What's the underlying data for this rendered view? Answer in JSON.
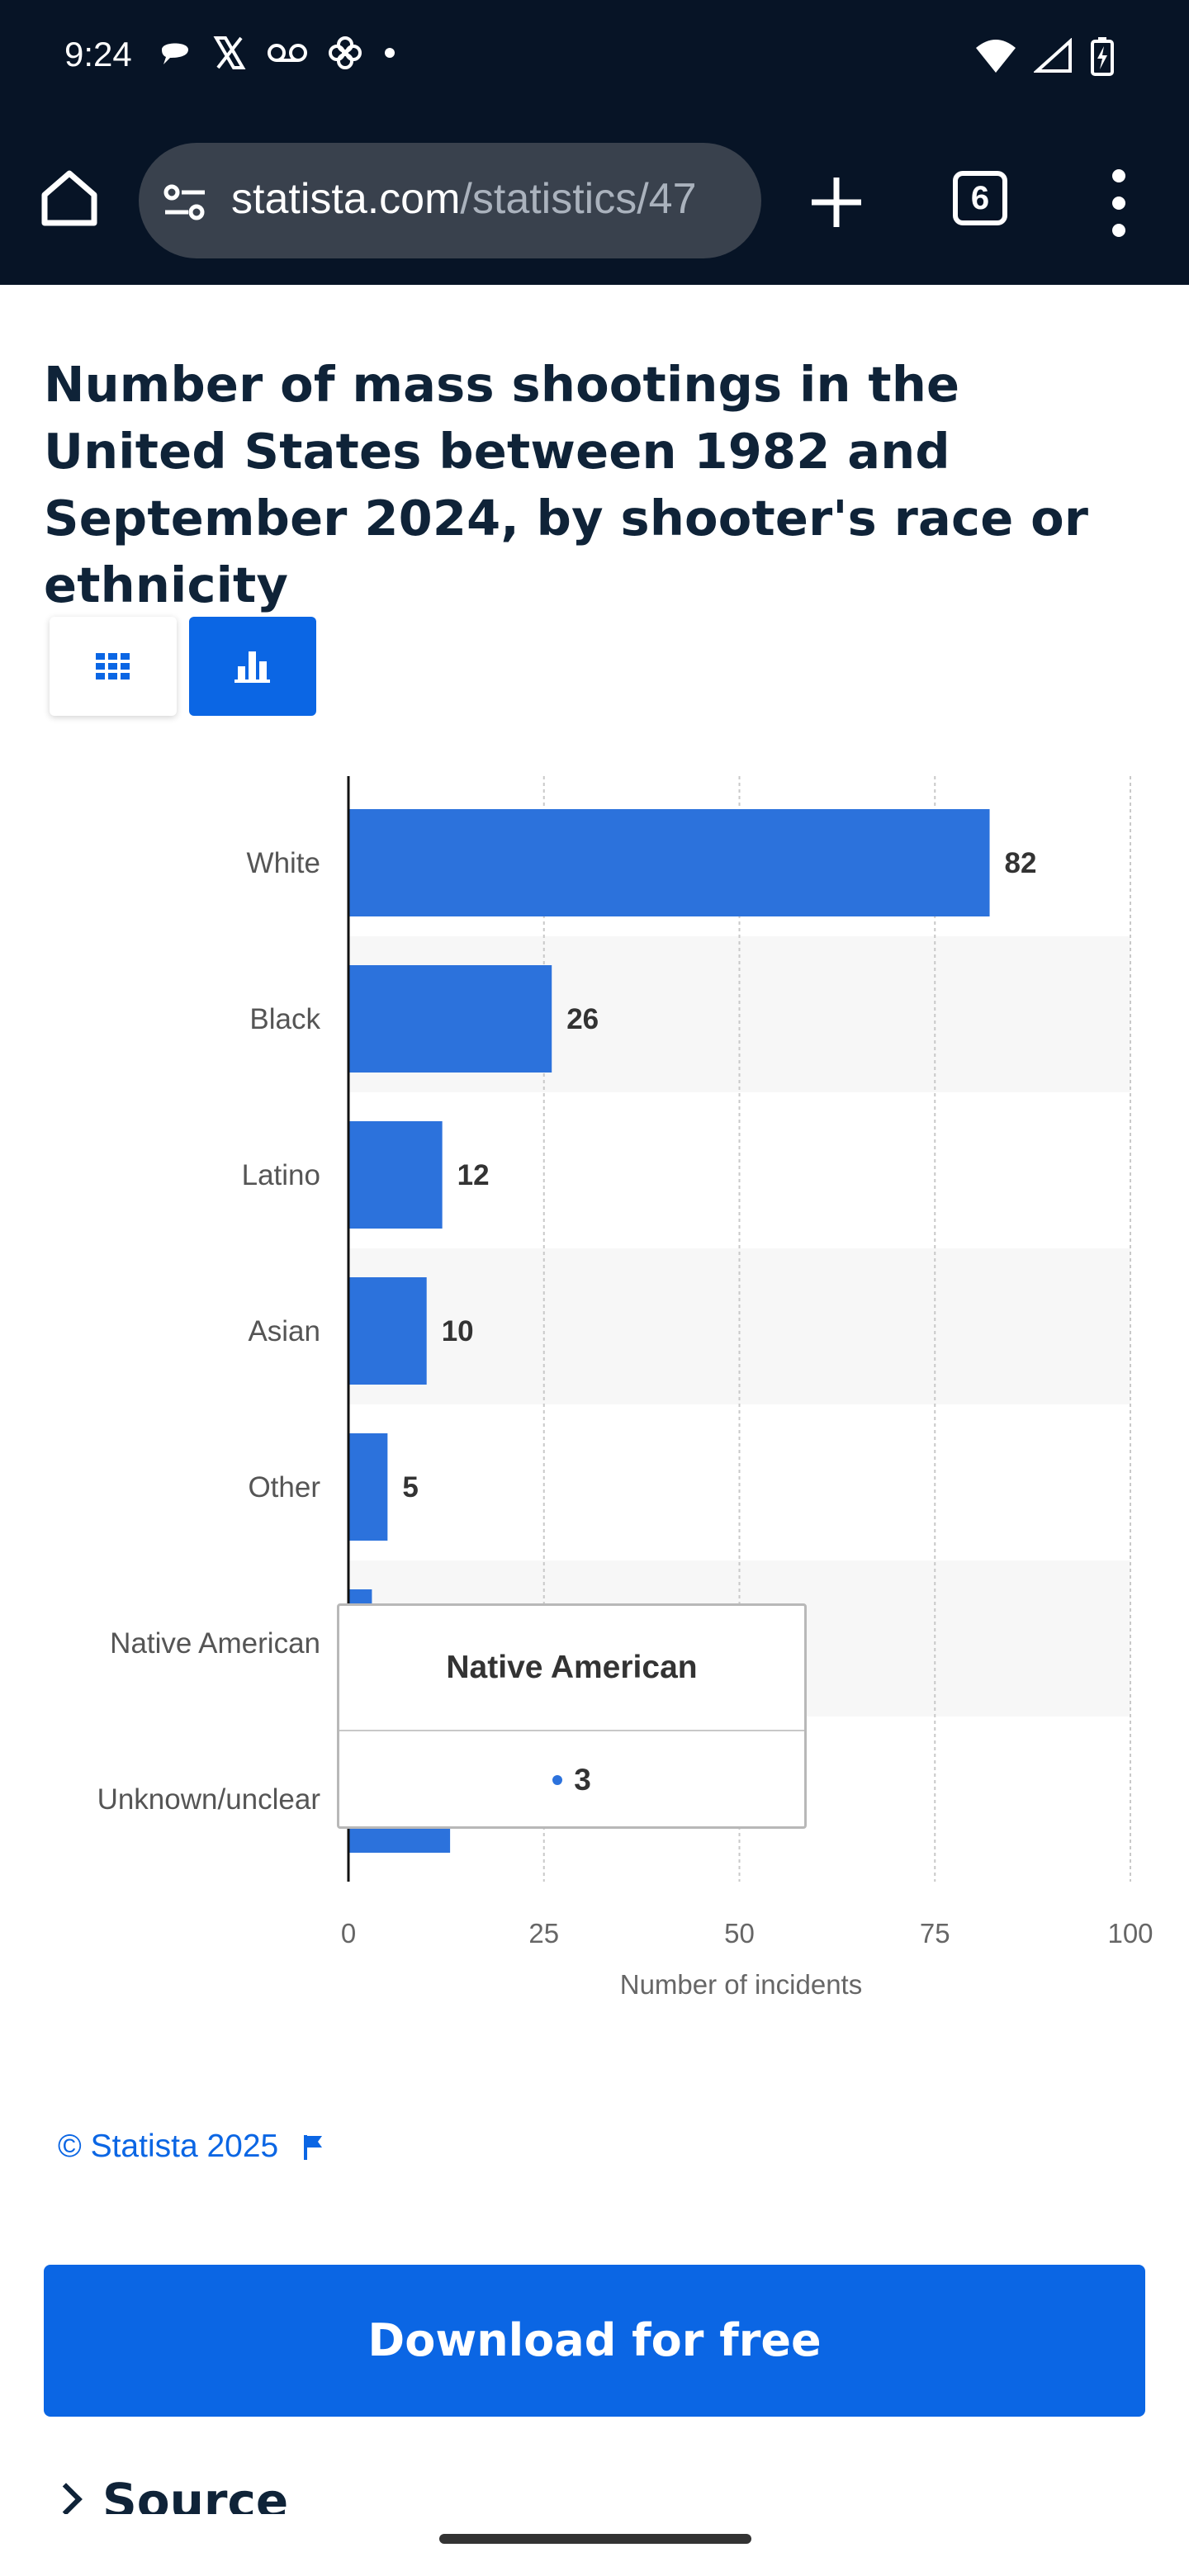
{
  "status_bar": {
    "time": "9:24",
    "left_icons": [
      "chat-bubble-icon",
      "x-logo-icon",
      "voicemail-icon",
      "pinwheel-icon",
      "dot-icon"
    ],
    "right_icons": [
      "wifi-icon",
      "signal-icon",
      "battery-charging-icon"
    ]
  },
  "browser": {
    "url_domain": "statista.com",
    "url_path": "/statistics/47",
    "tab_count": "6"
  },
  "page": {
    "title": "Number of mass shootings in the United States between 1982 and September 2024, by shooter's race or ethnicity",
    "copyright": "© Statista 2025",
    "download_label": "Download for free",
    "source_label": "Source"
  },
  "tooltip": {
    "category": "Native American",
    "value": "3"
  },
  "colors": {
    "bar": "#2c72dc",
    "accent": "#0b66e4",
    "header": "#071426"
  },
  "chart_data": {
    "type": "bar",
    "orientation": "horizontal",
    "categories": [
      "White",
      "Black",
      "Latino",
      "Asian",
      "Other",
      "Native American",
      "Unknown/unclear"
    ],
    "values": [
      82,
      26,
      12,
      10,
      5,
      3,
      13
    ],
    "data_labels": [
      "82",
      "26",
      "12",
      "10",
      "5",
      "",
      ""
    ],
    "xlabel": "Number of incidents",
    "xlim": [
      0,
      100
    ],
    "xticks": [
      0,
      25,
      50,
      75,
      100
    ],
    "grid": true
  }
}
